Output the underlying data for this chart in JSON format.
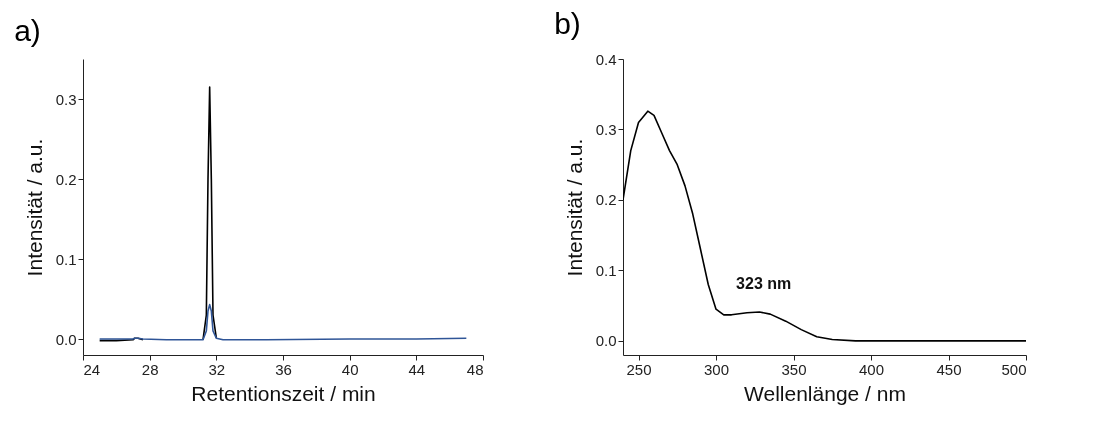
{
  "chart_data": [
    {
      "type": "line",
      "title": "a)",
      "xlabel": "Retentionszeit / min",
      "ylabel": "Intensität / a.u.",
      "xlim": [
        24,
        48
      ],
      "xticks": [
        24,
        28,
        32,
        36,
        40,
        44,
        48
      ],
      "ylim": [
        -0.02,
        0.35
      ],
      "yticks": [
        {
          "value": 0,
          "label": "0.0"
        },
        0.1,
        0.2,
        0.3
      ],
      "series": [
        {
          "color": "#000000",
          "x": [
            25,
            26,
            27,
            27.1,
            27.3,
            27.6,
            29,
            30.5,
            31.2,
            31.4,
            31.5,
            31.6,
            31.7,
            31.8,
            32.0
          ],
          "values": [
            -0.002,
            -0.002,
            -0.001,
            0.001,
            0.001,
            -0.001,
            null,
            null,
            -0.001,
            0.03,
            0.2,
            0.315,
            0.2,
            0.03,
            0.001
          ]
        },
        {
          "color": "#2f5597",
          "x": [
            25,
            26,
            27,
            27.1,
            27.3,
            27.6,
            29,
            30.5,
            31.2,
            31.4,
            31.5,
            31.6,
            31.7,
            31.8,
            32.0,
            32.4,
            35,
            40,
            44,
            47
          ],
          "values": [
            0,
            0,
            0,
            0.001,
            0.001,
            0,
            -0.001,
            -0.001,
            -0.001,
            0.01,
            0.035,
            0.043,
            0.035,
            0.01,
            0.001,
            -0.001,
            -0.001,
            0,
            0,
            0.001
          ]
        }
      ]
    },
    {
      "type": "line",
      "title": "b)",
      "xlabel": "Wellenlänge / nm",
      "ylabel": "Intensität / a.u.",
      "xlim": [
        240,
        500
      ],
      "xticks": [
        250,
        300,
        350,
        400,
        450,
        500
      ],
      "ylim": [
        -0.02,
        0.4
      ],
      "yticks": [
        {
          "value": 0,
          "label": "0.0"
        },
        0.1,
        0.2,
        0.3,
        0.4
      ],
      "annotations": [
        {
          "text": "323 nm",
          "x": 323,
          "y": 0.041
        }
      ],
      "series": [
        {
          "color": "#000000",
          "x": [
            240,
            245,
            250,
            256,
            260,
            265,
            270,
            275,
            280,
            285,
            290,
            295,
            300,
            305,
            310,
            320,
            328,
            335,
            345,
            355,
            365,
            375,
            390,
            400,
            450,
            500
          ],
          "values": [
            0.2,
            0.27,
            0.31,
            0.326,
            0.32,
            0.295,
            0.27,
            0.25,
            0.22,
            0.18,
            0.13,
            0.08,
            0.045,
            0.037,
            0.037,
            0.04,
            0.041,
            0.038,
            0.028,
            0.016,
            0.006,
            0.002,
            0,
            0,
            0,
            0
          ]
        }
      ]
    }
  ]
}
